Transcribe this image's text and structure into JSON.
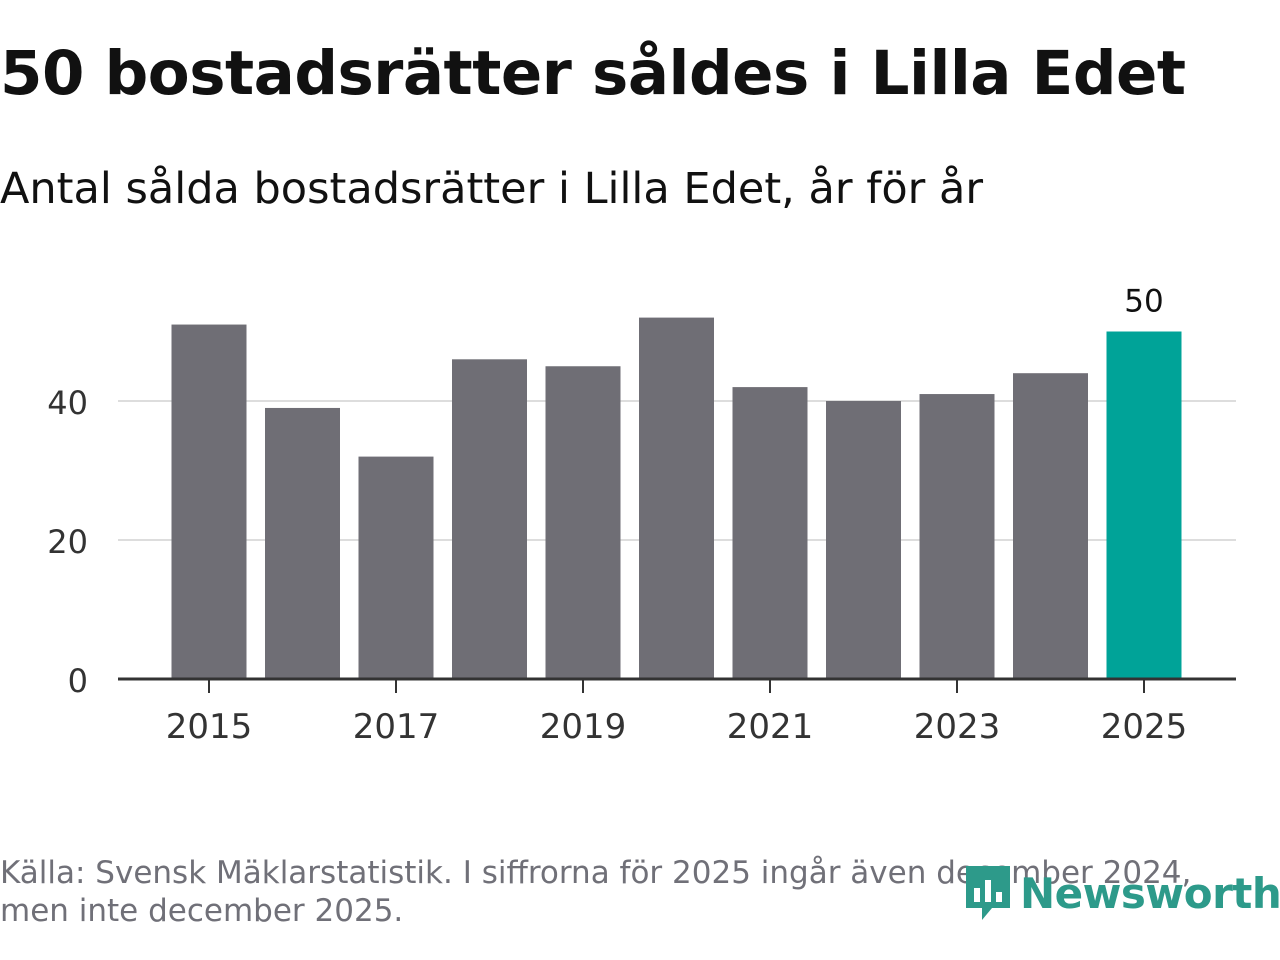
{
  "title": "50 bostadsrätter såldes i Lilla Edet",
  "subtitle": "Antal sålda bostadsrätter i Lilla Edet, år för år",
  "source_line1": "Källa: Svensk Mäklarstatistik. I siffrorna för 2025 ingår även december 2024,",
  "source_line2": "men inte december 2025.",
  "brand": "Newsworthy",
  "colors": {
    "bar": "#6f6e75",
    "highlight": "#00a398",
    "grid": "#dddddd",
    "axis": "#333333",
    "brand": "#2d9a8a"
  },
  "chart_data": {
    "type": "bar",
    "title": "50 bostadsrätter såldes i Lilla Edet",
    "subtitle": "Antal sålda bostadsrätter i Lilla Edet, år för år",
    "categories": [
      "2015",
      "2016",
      "2017",
      "2018",
      "2019",
      "2020",
      "2021",
      "2022",
      "2023",
      "2024",
      "2025"
    ],
    "values": [
      51,
      39,
      32,
      46,
      45,
      52,
      42,
      40,
      41,
      44,
      50
    ],
    "highlight_index": 10,
    "highlight_label": "50",
    "xtick_labels": [
      "2015",
      "2017",
      "2019",
      "2021",
      "2023",
      "2025"
    ],
    "yticks": [
      0,
      20,
      40
    ],
    "ylim": [
      0,
      55
    ],
    "xlabel": "",
    "ylabel": "",
    "grid": true
  }
}
